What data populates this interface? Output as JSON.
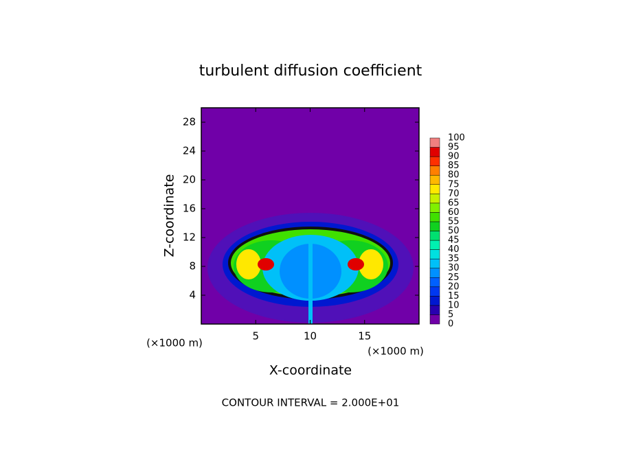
{
  "chart_data": {
    "type": "contour",
    "title": "turbulent diffusion coefficient",
    "xlabel": "X-coordinate",
    "ylabel": "Z-coordinate",
    "x_unit": "(×1000 m)",
    "x_unit_right": "(×1000 m)",
    "note": "CONTOUR INTERVAL = 2.000E+01",
    "xlim": [
      0,
      20
    ],
    "ylim": [
      0,
      30
    ],
    "xticks": [
      5,
      10,
      15
    ],
    "yticks": [
      4,
      8,
      12,
      16,
      20,
      24,
      28
    ],
    "colorbar": {
      "levels": [
        0,
        5,
        10,
        15,
        20,
        25,
        30,
        35,
        40,
        45,
        50,
        55,
        60,
        65,
        70,
        75,
        80,
        85,
        90,
        95,
        100
      ],
      "colors": [
        "#7000a8",
        "#2800b0",
        "#0018d0",
        "#0038f0",
        "#0060ff",
        "#0090ff",
        "#00c0f8",
        "#00e0e0",
        "#00f0b0",
        "#00e070",
        "#10d020",
        "#40e000",
        "#80f000",
        "#c8f000",
        "#ffe800",
        "#ffb800",
        "#ff8000",
        "#ff3000",
        "#e00000",
        "#f08080"
      ]
    }
  }
}
